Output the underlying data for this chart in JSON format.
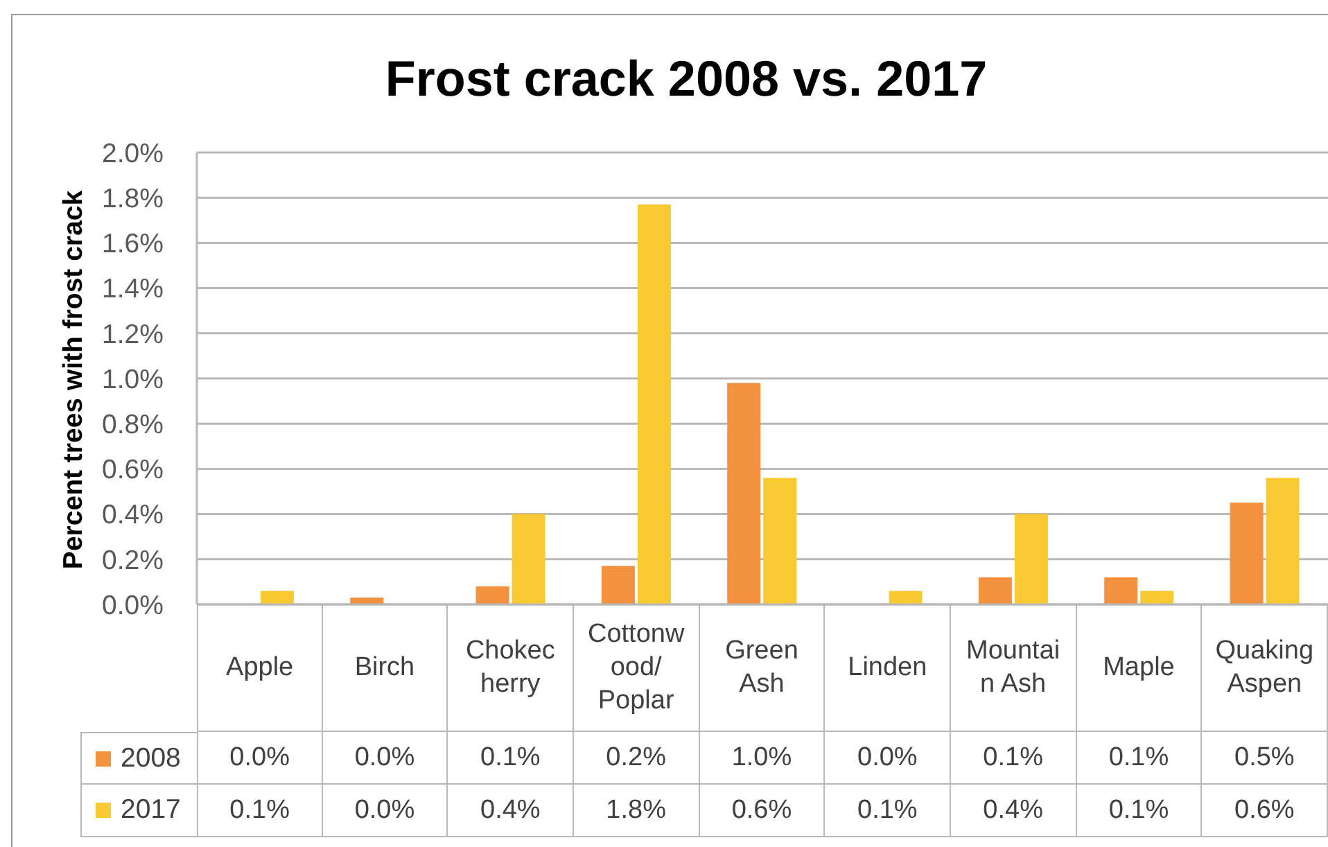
{
  "chart_data": {
    "type": "bar",
    "title": "Frost crack 2008 vs. 2017",
    "ylabel": "Percent trees with frost crack",
    "categories": [
      "Apple",
      "Birch",
      "Chokecherry",
      "Cottonwood/Poplar",
      "Green Ash",
      "Linden",
      "Mountain Ash",
      "Maple",
      "Quaking Aspen"
    ],
    "series": [
      {
        "name": "2008",
        "color": "#f4913e",
        "values": [
          0,
          0.03,
          0.08,
          0.17,
          0.98,
          0,
          0.12,
          0.12,
          0.45
        ],
        "value_labels": [
          "0.0%",
          "0.0%",
          "0.1%",
          "0.2%",
          "1.0%",
          "0.0%",
          "0.1%",
          "0.1%",
          "0.5%"
        ]
      },
      {
        "name": "2017",
        "color": "#f8c932",
        "values": [
          0.06,
          0,
          0.4,
          1.77,
          0.56,
          0.06,
          0.4,
          0.06,
          0.56
        ],
        "value_labels": [
          "0.1%",
          "0.0%",
          "0.4%",
          "1.8%",
          "0.6%",
          "0.1%",
          "0.4%",
          "0.1%",
          "0.6%"
        ]
      }
    ],
    "ylim": [
      0,
      2
    ],
    "yticks": [
      {
        "value": 0,
        "label": "0.0%"
      },
      {
        "value": 0.2,
        "label": "0.2%"
      },
      {
        "value": 0.4,
        "label": "0.4%"
      },
      {
        "value": 0.6,
        "label": "0.6%"
      },
      {
        "value": 0.8,
        "label": "0.8%"
      },
      {
        "value": 1,
        "label": "1.0%"
      },
      {
        "value": 1.2,
        "label": "1.2%"
      },
      {
        "value": 1.4,
        "label": "1.4%"
      },
      {
        "value": 1.6,
        "label": "1.6%"
      },
      {
        "value": 1.8,
        "label": "1.8%"
      },
      {
        "value": 2,
        "label": "2.0%"
      }
    ],
    "grid": "y",
    "legend": "bottom left"
  }
}
